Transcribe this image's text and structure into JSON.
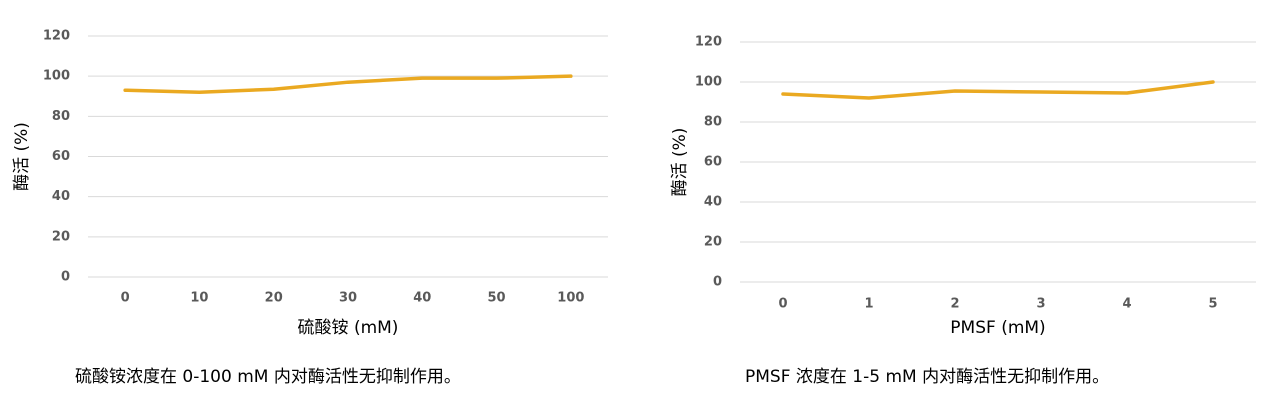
{
  "chart_data": [
    {
      "type": "line",
      "ylabel": "酶活 (%)",
      "xlabel": "硫酸铵 (mM)",
      "categories": [
        "0",
        "10",
        "20",
        "30",
        "40",
        "50",
        "100"
      ],
      "series": [
        {
          "name": "酶活",
          "color": "#eaa921",
          "values": [
            93,
            92,
            93.5,
            97,
            99,
            99,
            100
          ]
        }
      ],
      "ylim": [
        0,
        120
      ],
      "yticks": [
        0,
        20,
        40,
        60,
        80,
        100,
        120
      ],
      "grid": true,
      "caption": "硫酸铵浓度在 0-100 mM 内对酶活性无抑制作用。"
    },
    {
      "type": "line",
      "ylabel": "酶活 (%)",
      "xlabel": "PMSF (mM)",
      "categories": [
        "0",
        "1",
        "2",
        "3",
        "4",
        "5"
      ],
      "series": [
        {
          "name": "酶活",
          "color": "#eaa921",
          "values": [
            94,
            92,
            95.5,
            95,
            94.5,
            100
          ]
        }
      ],
      "ylim": [
        0,
        120
      ],
      "yticks": [
        0,
        20,
        40,
        60,
        80,
        100,
        120
      ],
      "grid": true,
      "caption": "PMSF 浓度在 1-5 mM 内对酶活性无抑制作用。"
    }
  ]
}
